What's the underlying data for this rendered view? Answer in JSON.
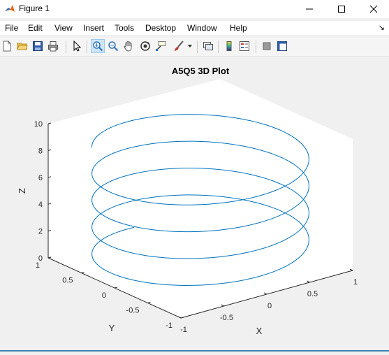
{
  "window": {
    "title": "Figure 1",
    "controls": {
      "minimize": "minimize",
      "maximize": "maximize",
      "close": "close"
    }
  },
  "menubar": {
    "items": [
      "File",
      "Edit",
      "View",
      "Insert",
      "Tools",
      "Desktop",
      "Window",
      "Help"
    ]
  },
  "toolbar": {
    "tools": [
      "new-figure",
      "open-file",
      "save",
      "print",
      "edit-plot",
      "zoom-in",
      "zoom-out",
      "pan",
      "rotate-3d",
      "data-cursor",
      "brush",
      "link-plot",
      "insert-colorbar",
      "insert-legend",
      "hide-plot-tools",
      "show-plot-tools"
    ],
    "active_tool": "zoom-in"
  },
  "axes": {
    "title": "A5Q5 3D Plot",
    "xlabel": "X",
    "ylabel": "Y",
    "zlabel": "Z",
    "x_ticks": [
      "-1",
      "-0.5",
      "0",
      "0.5",
      "1"
    ],
    "y_ticks": [
      "1",
      "0.5",
      "0",
      "-0.5",
      "-1"
    ],
    "z_ticks": [
      "0",
      "2",
      "4",
      "6",
      "8",
      "10"
    ],
    "line_color": "#0072bd",
    "box_color": "#ffffff",
    "background_color": "#f0f0f0"
  },
  "chart_data": {
    "type": "line",
    "title": "A5Q5 3D Plot",
    "xlabel": "X",
    "ylabel": "Y",
    "zlabel": "Z",
    "xlim": [
      -1,
      1
    ],
    "ylim": [
      -1,
      1
    ],
    "zlim": [
      0,
      10
    ],
    "view": "3d",
    "grid": false,
    "series": [
      {
        "values": "parametric helix x=cos(t), y=sin(t), z=t/pi, t from 0.5*pi to 8.8*pi (approx.)"
      }
    ]
  }
}
